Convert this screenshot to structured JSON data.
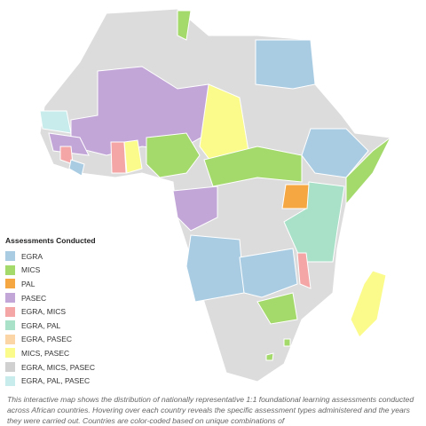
{
  "legend": {
    "title": "Assessments Conducted",
    "items": [
      {
        "label": "EGRA",
        "color": "#a9cce3"
      },
      {
        "label": "MICS",
        "color": "#a4d96c"
      },
      {
        "label": "PAL",
        "color": "#f5a742"
      },
      {
        "label": "PASEC",
        "color": "#c3a6d8"
      },
      {
        "label": "EGRA, MICS",
        "color": "#f4a6a6"
      },
      {
        "label": "EGRA, PAL",
        "color": "#a8e0c8"
      },
      {
        "label": "EGRA, PASEC",
        "color": "#fbd5a5"
      },
      {
        "label": "MICS, PASEC",
        "color": "#fbfb8c"
      },
      {
        "label": "EGRA, MICS, PASEC",
        "color": "#d0d0d0"
      },
      {
        "label": "EGRA, PAL, PASEC",
        "color": "#c8ecec"
      }
    ]
  },
  "caption": "This interactive map shows the distribution of nationally representative 1:1 foundational learning assessments conducted across African countries. Hovering over each country reveals the specific assessment types administered and the years they were carried out. Countries are color-coded based on unique combinations of"
}
